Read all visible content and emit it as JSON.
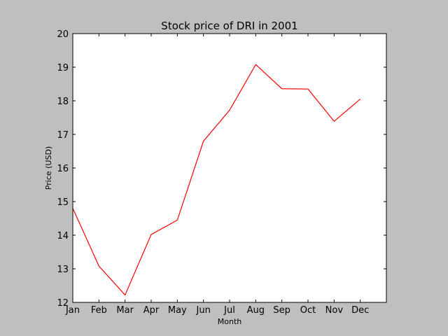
{
  "chart_data": {
    "type": "line",
    "title": "Stock price of DRI in 2001",
    "xlabel": "Month",
    "ylabel": "Price (USD)",
    "categories": [
      "Jan",
      "Feb",
      "Mar",
      "Apr",
      "May",
      "Jun",
      "Jul",
      "Aug",
      "Sep",
      "Oct",
      "Nov",
      "Dec"
    ],
    "x_tick_labels": [
      "Jan",
      "Feb",
      "Mar",
      "Apr",
      "May",
      "Jun",
      "Jul",
      "Aug",
      "Sep",
      "Oct",
      "Nov",
      "Dec"
    ],
    "y_tick_labels": [
      "12",
      "13",
      "14",
      "15",
      "16",
      "17",
      "18",
      "19",
      "20"
    ],
    "series": [
      {
        "values": [
          14.8,
          13.08,
          12.22,
          14.02,
          14.45,
          16.8,
          17.72,
          19.08,
          18.36,
          18.35,
          17.39,
          18.05
        ],
        "color": "#ff0000"
      }
    ],
    "xlim": [
      0,
      12
    ],
    "ylim": [
      12,
      20
    ],
    "y_ticks": [
      12,
      13,
      14,
      15,
      16,
      17,
      18,
      19,
      20
    ],
    "grid": false,
    "legend": "none"
  }
}
